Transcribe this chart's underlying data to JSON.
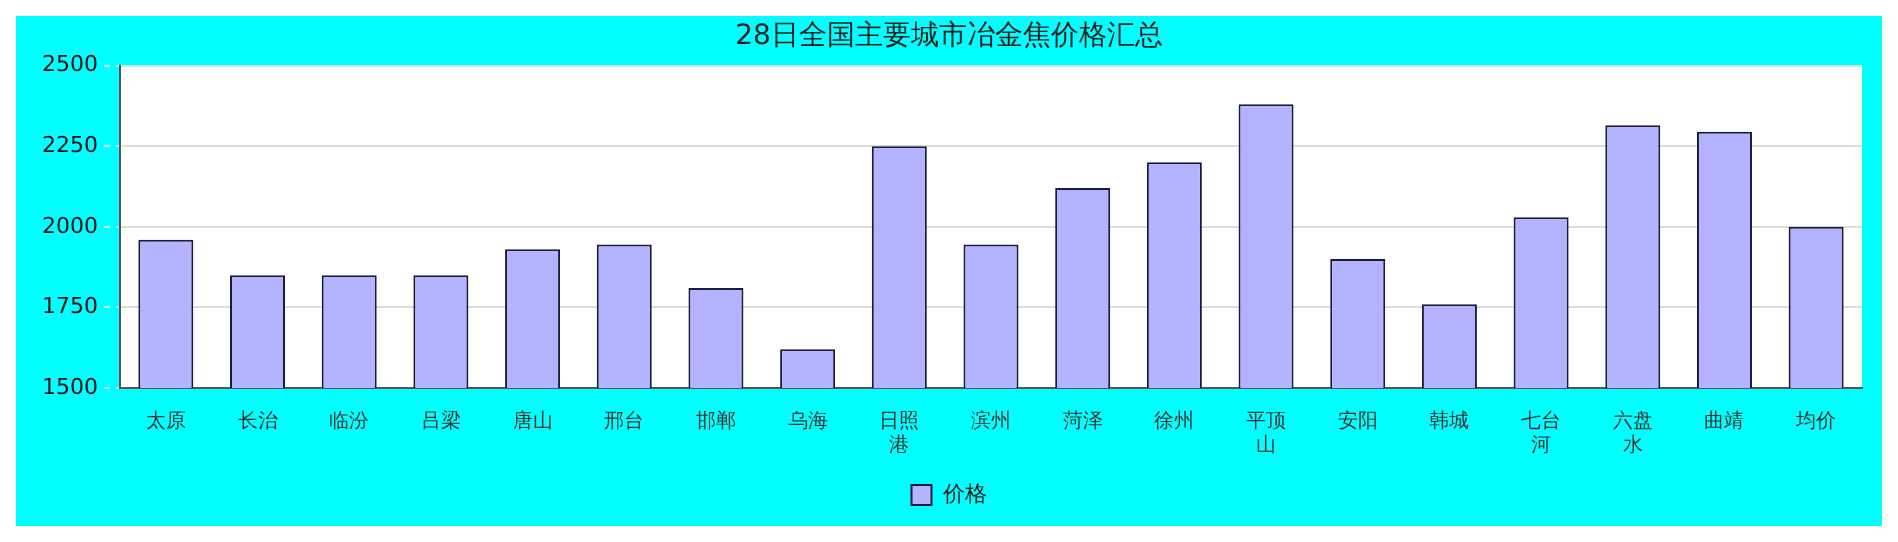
{
  "chart_data": {
    "type": "bar",
    "title": "28日全国主要城市冶金焦价格汇总",
    "categories": [
      "太原",
      "长治",
      "临汾",
      "吕梁",
      "唐山",
      "邢台",
      "邯郸",
      "乌海",
      "日照港",
      "滨州",
      "菏泽",
      "徐州",
      "平顶山",
      "安阳",
      "韩城",
      "七台河",
      "六盘水",
      "曲靖",
      "均价"
    ],
    "series": [
      {
        "name": "价格",
        "color": "#b3b3ff",
        "values": [
          1960,
          1850,
          1850,
          1850,
          1930,
          1945,
          1810,
          1620,
          2250,
          1945,
          2120,
          2200,
          2380,
          1900,
          1760,
          2030,
          2315,
          2295,
          2000
        ]
      }
    ],
    "ylim": [
      1500,
      2500
    ],
    "yticks": [
      1500,
      1750,
      2000,
      2250,
      2500
    ],
    "grid": "y",
    "legend": "bottom"
  }
}
